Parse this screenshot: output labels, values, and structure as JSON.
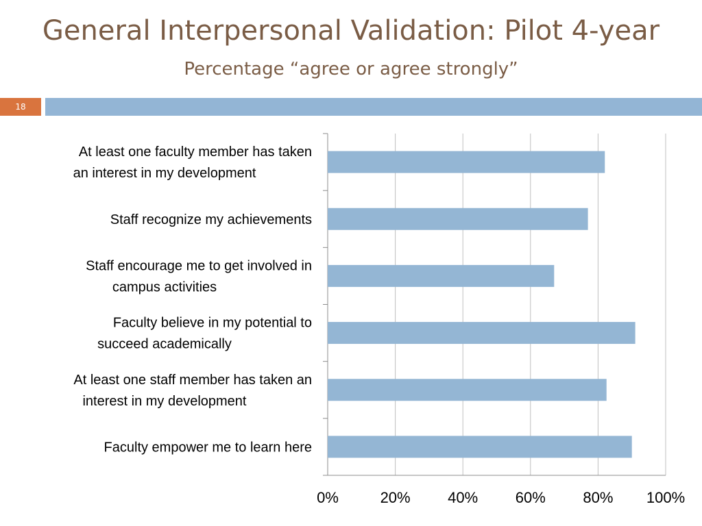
{
  "slide": {
    "title": "General Interpersonal Validation: Pilot 4-year",
    "subtitle": "Percentage “agree or agree strongly”",
    "number": "18"
  },
  "colors": {
    "bar": "#94b6d4",
    "accent": "#d9743e",
    "title": "#7a5c45",
    "band": "#93b5d5"
  },
  "chart_data": {
    "type": "bar",
    "orientation": "horizontal",
    "title": "",
    "xlabel": "",
    "ylabel": "",
    "xlim": [
      0,
      100
    ],
    "grid": true,
    "categories": [
      [
        "At least one faculty member has taken",
        "an interest in my development"
      ],
      [
        "Staff recognize my achievements"
      ],
      [
        "Staff encourage me to get involved in",
        "campus activities"
      ],
      [
        "Faculty believe in my potential to",
        "succeed academically"
      ],
      [
        "At least one staff member has taken an",
        "interest in my development"
      ],
      [
        "Faculty empower me to learn here"
      ]
    ],
    "values": [
      82,
      77,
      67,
      91,
      82.5,
      90
    ],
    "ticks": [
      "0%",
      "20%",
      "40%",
      "60%",
      "80%",
      "100%"
    ]
  }
}
